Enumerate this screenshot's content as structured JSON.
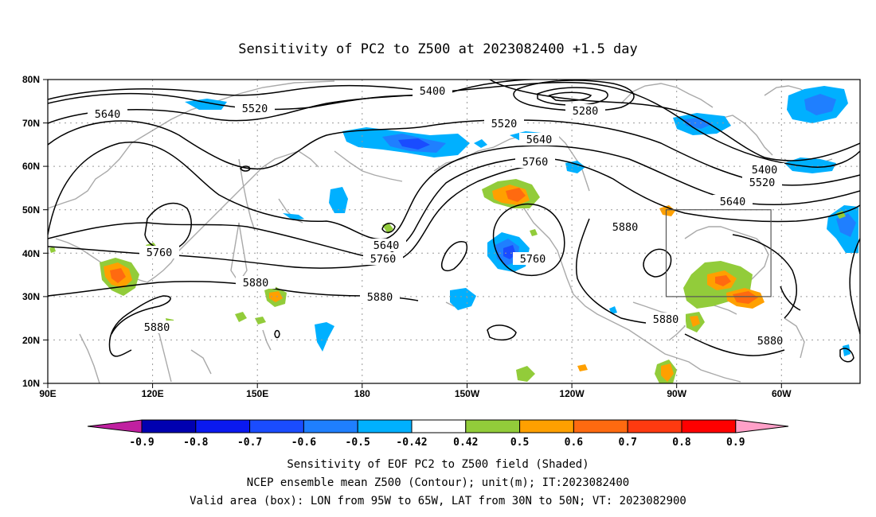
{
  "title": "Sensitivity of PC2 to Z500 at 2023082400 +1.5 day",
  "lat_labels": [
    "80N",
    "70N",
    "60N",
    "50N",
    "40N",
    "30N",
    "20N",
    "10N"
  ],
  "lon_labels": [
    "90E",
    "120E",
    "150E",
    "180",
    "150W",
    "120W",
    "90W",
    "60W"
  ],
  "contour_labels": {
    "c5400": "5400",
    "c5520": "5520",
    "c5640": "5640",
    "c5760": "5760",
    "c5880": "5880",
    "c5280": "5280"
  },
  "colorbar": {
    "labels": [
      "-0.9",
      "-0.8",
      "-0.7",
      "-0.6",
      "-0.5",
      "-0.42",
      "0.42",
      "0.5",
      "0.6",
      "0.7",
      "0.8",
      "0.9"
    ],
    "colors": [
      "#0000b0",
      "#0a19f0",
      "#1a4cff",
      "#1f7fff",
      "#00b0ff",
      "#ffffff",
      "#92cc3a",
      "#ffa000",
      "#ff6a10",
      "#ff3a10",
      "#ff0000"
    ],
    "low_arrow_color": "#c020a0",
    "high_arrow_color": "#ffa0c8"
  },
  "footer": {
    "line1": "Sensitivity of EOF PC2 to Z500 field (Shaded)",
    "line2": "NCEP ensemble mean Z500 (Contour); unit(m); IT:2023082400",
    "line3": "Valid area (box): LON from 95W to 65W, LAT from 30N to 50N; VT: 2023082900"
  },
  "colors": {
    "coastline": "#a9a9a9",
    "grid": "#9a9a9a",
    "contour": "#000000"
  }
}
